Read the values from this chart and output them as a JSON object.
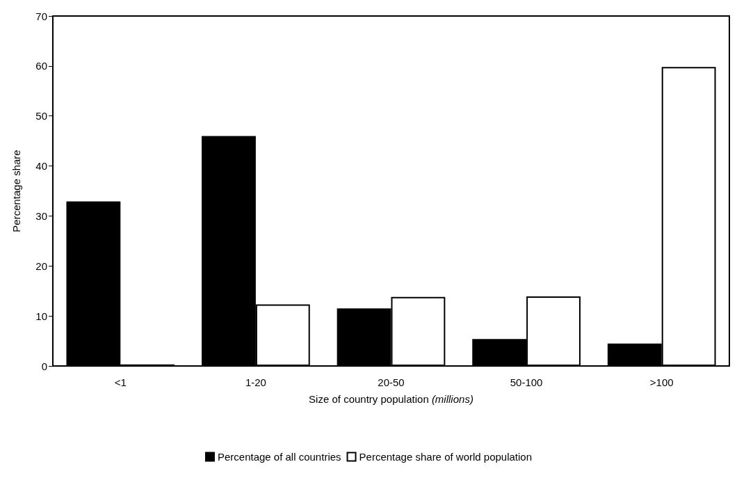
{
  "chart_data": {
    "type": "bar",
    "xlabel": "Size of country population (millions)",
    "ylabel": "Percentage share",
    "categories": [
      "<1",
      "1-20",
      "20-50",
      "50-100",
      ">100"
    ],
    "series": [
      {
        "name": "Percentage of all countries",
        "color": "#000000",
        "values": [
          32.9,
          46.0,
          11.5,
          5.4,
          4.5
        ]
      },
      {
        "name": "Percentage share of world population",
        "color": "#ffffff",
        "values": [
          0.3,
          12.3,
          13.8,
          13.9,
          59.8
        ]
      }
    ],
    "ylim": [
      0,
      70
    ],
    "yticks": [
      0,
      10,
      20,
      30,
      40,
      50,
      60,
      70
    ],
    "grid": false,
    "legend": "bottom"
  }
}
